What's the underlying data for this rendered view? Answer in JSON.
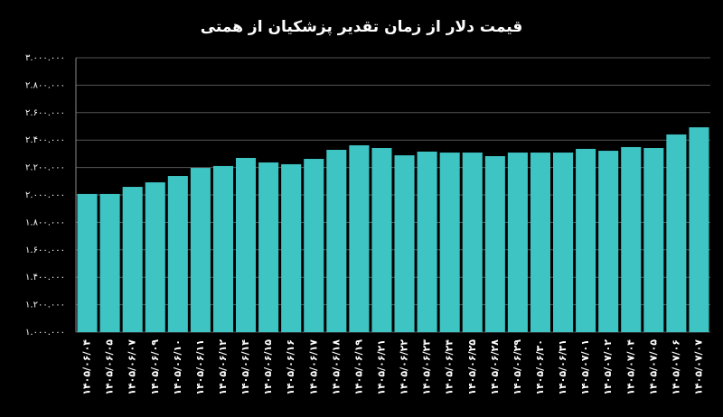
{
  "chart_data": {
    "type": "bar",
    "title": "قیمت دلار از زمان تقدیر پزشکیان از همتی",
    "categories": [
      "۱۴۰۵/۰۶/۰۴",
      "۱۴۰۵/۰۶/۰۵",
      "۱۴۰۵/۰۶/۰۷",
      "۱۴۰۵/۰۶/۰۹",
      "۱۴۰۵/۰۶/۱۰",
      "۱۴۰۵/۰۶/۱۱",
      "۱۴۰۵/۰۶/۱۲",
      "۱۴۰۵/۰۶/۱۴",
      "۱۴۰۵/۰۶/۱۵",
      "۱۴۰۵/۰۶/۱۶",
      "۱۴۰۵/۰۶/۱۷",
      "۱۴۰۵/۰۶/۱۸",
      "۱۴۰۵/۰۶/۱۹",
      "۱۴۰۵/۰۶/۲۱",
      "۱۴۰۵/۰۶/۲۲",
      "۱۴۰۵/۰۶/۲۳",
      "۱۴۰۵/۰۶/۲۴",
      "۱۴۰۵/۰۶/۲۵",
      "۱۴۰۵/۰۶/۲۸",
      "۱۴۰۵/۰۶/۲۹",
      "۱۴۰۵/۰۶/۳۰",
      "۱۴۰۵/۰۶/۳۱",
      "۱۴۰۵/۰۷/۰۱",
      "۱۴۰۵/۰۷/۰۲",
      "۱۴۰۵/۰۷/۰۴",
      "۱۴۰۵/۰۷/۰۵",
      "۱۴۰۵/۰۷/۰۶",
      "۱۴۰۵/۰۷/۰۷"
    ],
    "values": [
      2007000,
      2007000,
      2059000,
      2092000,
      2138000,
      2197000,
      2211000,
      2270000,
      2237000,
      2224000,
      2263000,
      2329000,
      2362000,
      2342000,
      2289000,
      2316000,
      2309000,
      2309000,
      2283000,
      2309000,
      2309000,
      2309000,
      2336000,
      2322000,
      2349000,
      2342000,
      2441000,
      2493000
    ],
    "color": "#3fc4c4",
    "ylim": [
      1000000,
      3000000
    ],
    "yticks": [
      {
        "value": 1000000,
        "label": "۱.۰۰۰.۰۰۰"
      },
      {
        "value": 1200000,
        "label": "۱.۲۰۰.۰۰۰"
      },
      {
        "value": 1400000,
        "label": "۱.۴۰۰.۰۰۰"
      },
      {
        "value": 1600000,
        "label": "۱.۶۰۰.۰۰۰"
      },
      {
        "value": 1800000,
        "label": "۱.۸۰۰.۰۰۰"
      },
      {
        "value": 2000000,
        "label": "۲.۰۰۰.۰۰۰"
      },
      {
        "value": 2200000,
        "label": "۲.۲۰۰.۰۰۰"
      },
      {
        "value": 2400000,
        "label": "۲.۴۰۰.۰۰۰"
      },
      {
        "value": 2600000,
        "label": "۲.۶۰۰.۰۰۰"
      },
      {
        "value": 2800000,
        "label": "۲.۸۰۰.۰۰۰"
      },
      {
        "value": 3000000,
        "label": "۳.۰۰۰.۰۰۰"
      }
    ],
    "grid": true
  }
}
